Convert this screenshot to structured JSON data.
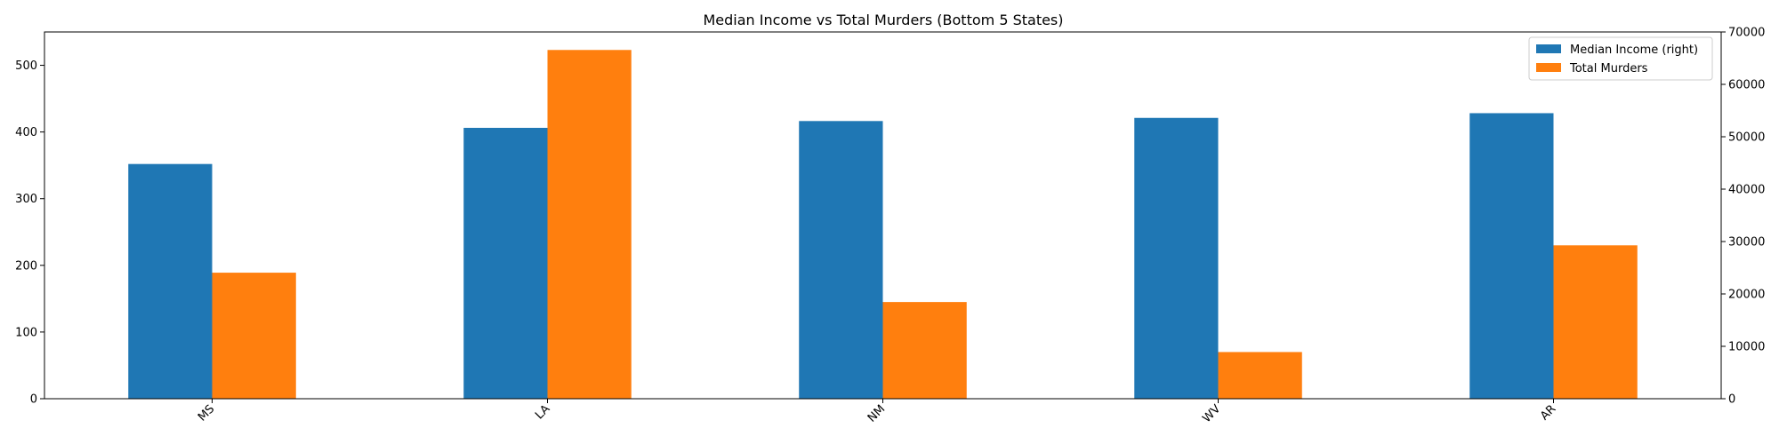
{
  "chart_data": {
    "type": "bar",
    "title": "Median Income vs Total Murders (Bottom 5 States)",
    "xlabel": "",
    "categories": [
      "MS",
      "LA",
      "NM",
      "WV",
      "AR"
    ],
    "series": [
      {
        "name": "Median Income (right)",
        "axis": "right",
        "color": "#1f77b4",
        "values": [
          44800,
          51700,
          53000,
          53600,
          54500
        ]
      },
      {
        "name": "Total Murders",
        "axis": "left",
        "color": "#ff7f0e",
        "values": [
          189,
          523,
          145,
          70,
          230
        ]
      }
    ],
    "y_left": {
      "label": "",
      "ylim": [
        0,
        550
      ],
      "ticks": [
        0,
        100,
        200,
        300,
        400,
        500
      ]
    },
    "y_right": {
      "label": "",
      "ylim": [
        0,
        70000
      ],
      "ticks": [
        0,
        10000,
        20000,
        30000,
        40000,
        50000,
        60000,
        70000
      ]
    },
    "grid": false,
    "legend": "top-right",
    "x_tick_rotation_deg": 45
  }
}
